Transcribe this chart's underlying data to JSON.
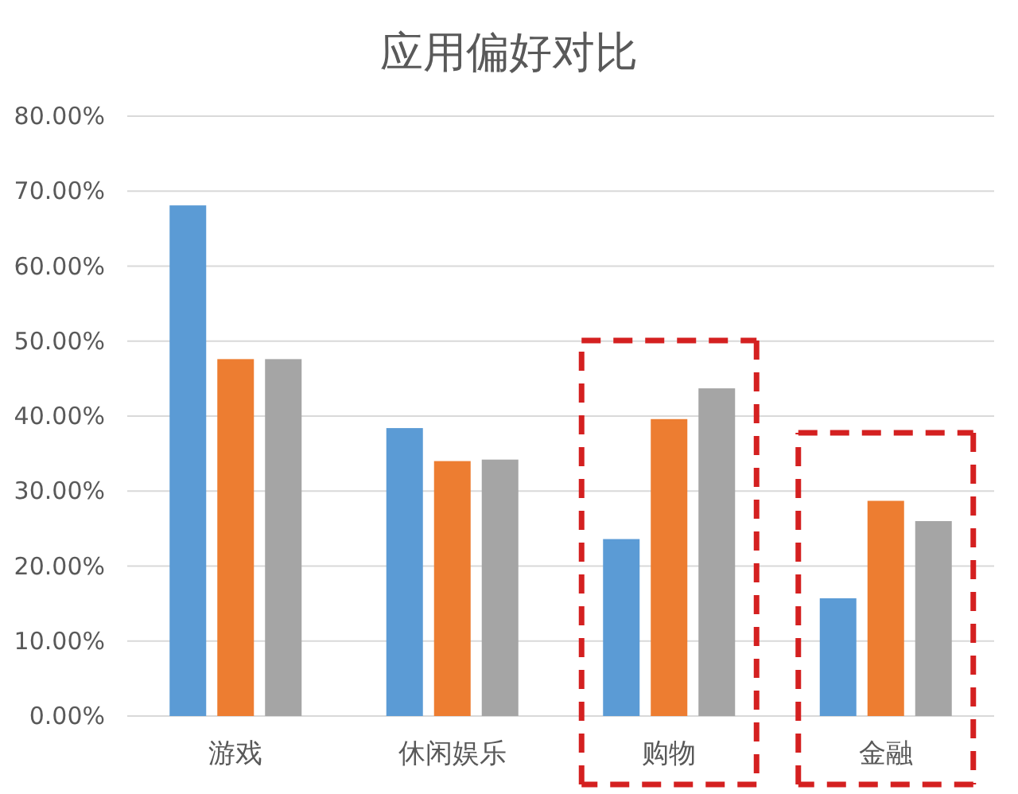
{
  "chart_data": {
    "type": "bar",
    "title": "应用偏好对比",
    "categories": [
      "游戏",
      "休闲娱乐",
      "购物",
      "金融"
    ],
    "series": [
      {
        "color": "#5b9bd5",
        "values": [
          68.1,
          38.4,
          23.6,
          15.7
        ]
      },
      {
        "color": "#ed7d31",
        "values": [
          47.6,
          34.0,
          39.6,
          28.7
        ]
      },
      {
        "color": "#a5a5a5",
        "values": [
          47.6,
          34.2,
          43.7,
          26.0
        ]
      }
    ],
    "ylim": [
      0,
      80
    ],
    "yticks": [
      {
        "value": 0,
        "label": "0.00%"
      },
      {
        "value": 10,
        "label": "10.00%"
      },
      {
        "value": 20,
        "label": "20.00%"
      },
      {
        "value": 30,
        "label": "30.00%"
      },
      {
        "value": 40,
        "label": "40.00%"
      },
      {
        "value": 50,
        "label": "50.00%"
      },
      {
        "value": 60,
        "label": "60.00%"
      },
      {
        "value": 70,
        "label": "70.00%"
      },
      {
        "value": 80,
        "label": "80.00%"
      }
    ],
    "grid": "y"
  }
}
